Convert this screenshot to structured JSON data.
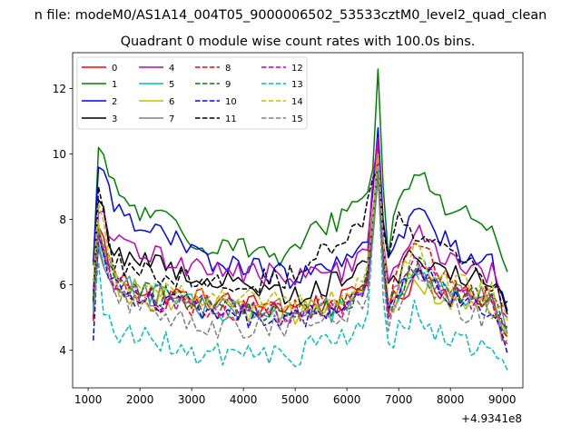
{
  "chart_data": {
    "type": "line",
    "suptitle": "n file: modeM0/AS1A14_004T05_9000006502_53533cztM0_level2_quad_clean",
    "title": "Quadrant 0 module wise count rates with 100.0s bins.",
    "xlabel": "",
    "ylabel": "",
    "x_offset_label": "+4.9341e8",
    "xlim": [
      700,
      9400
    ],
    "ylim": [
      2.85,
      13.1
    ],
    "xticks": [
      1000,
      2000,
      3000,
      4000,
      5000,
      6000,
      7000,
      8000,
      9000
    ],
    "xtick_labels": [
      "1000",
      "2000",
      "3000",
      "4000",
      "5000",
      "6000",
      "7000",
      "8000",
      "9000"
    ],
    "yticks": [
      4,
      6,
      8,
      10,
      12
    ],
    "ytick_labels": [
      "4",
      "6",
      "8",
      "10",
      "12"
    ],
    "x_start": 1100,
    "x_step": 100,
    "legend_position": "upper-left",
    "series": [
      {
        "name": "0",
        "color": "#ff0000",
        "dash": "solid",
        "anchors": [
          [
            1100,
            4.9
          ],
          [
            1200,
            7.8
          ],
          [
            1500,
            6.3
          ],
          [
            2000,
            5.9
          ],
          [
            3000,
            5.6
          ],
          [
            4000,
            5.4
          ],
          [
            5000,
            5.3
          ],
          [
            6000,
            5.5
          ],
          [
            6400,
            6.2
          ],
          [
            6600,
            10.2
          ],
          [
            6750,
            5.2
          ],
          [
            7400,
            6.4
          ],
          [
            8000,
            5.7
          ],
          [
            8800,
            5.6
          ],
          [
            9100,
            4.2
          ]
        ]
      },
      {
        "name": "1",
        "color": "#008000",
        "dash": "solid",
        "anchors": [
          [
            1100,
            6.6
          ],
          [
            1200,
            10.2
          ],
          [
            1500,
            8.9
          ],
          [
            2000,
            8.2
          ],
          [
            2500,
            8.0
          ],
          [
            3000,
            7.2
          ],
          [
            3500,
            7.3
          ],
          [
            4000,
            7.3
          ],
          [
            4500,
            6.8
          ],
          [
            5000,
            6.9
          ],
          [
            5300,
            7.6
          ],
          [
            5800,
            8.0
          ],
          [
            6300,
            8.7
          ],
          [
            6500,
            9.5
          ],
          [
            6600,
            12.6
          ],
          [
            6750,
            6.9
          ],
          [
            7000,
            8.5
          ],
          [
            7400,
            9.6
          ],
          [
            7800,
            8.7
          ],
          [
            8000,
            8.0
          ],
          [
            8500,
            8.1
          ],
          [
            8800,
            8.0
          ],
          [
            9100,
            6.4
          ]
        ]
      },
      {
        "name": "2",
        "color": "#0000ff",
        "dash": "solid",
        "anchors": [
          [
            1100,
            6.7
          ],
          [
            1200,
            9.6
          ],
          [
            1500,
            8.5
          ],
          [
            2000,
            7.9
          ],
          [
            3000,
            7.0
          ],
          [
            3500,
            6.6
          ],
          [
            4000,
            6.6
          ],
          [
            5000,
            6.2
          ],
          [
            6000,
            6.6
          ],
          [
            6400,
            7.6
          ],
          [
            6600,
            10.8
          ],
          [
            6750,
            6.5
          ],
          [
            7000,
            7.3
          ],
          [
            7300,
            8.3
          ],
          [
            8000,
            7.2
          ],
          [
            8800,
            6.7
          ],
          [
            9100,
            5.2
          ]
        ]
      },
      {
        "name": "3",
        "color": "#000000",
        "dash": "solid",
        "anchors": [
          [
            1100,
            5.5
          ],
          [
            1200,
            8.6
          ],
          [
            1500,
            7.0
          ],
          [
            2000,
            6.8
          ],
          [
            3000,
            6.3
          ],
          [
            4000,
            6.0
          ],
          [
            5000,
            5.7
          ],
          [
            6000,
            6.2
          ],
          [
            6400,
            7.0
          ],
          [
            6600,
            9.6
          ],
          [
            6750,
            6.0
          ],
          [
            7300,
            6.9
          ],
          [
            8000,
            6.4
          ],
          [
            8800,
            6.0
          ],
          [
            9100,
            5.1
          ]
        ]
      },
      {
        "name": "4",
        "color": "#bf00bf",
        "dash": "solid",
        "anchors": [
          [
            1100,
            5.8
          ],
          [
            1200,
            8.2
          ],
          [
            1500,
            7.3
          ],
          [
            2000,
            7.0
          ],
          [
            3000,
            6.6
          ],
          [
            4000,
            6.4
          ],
          [
            5000,
            6.2
          ],
          [
            6000,
            6.5
          ],
          [
            6400,
            7.4
          ],
          [
            6600,
            10.5
          ],
          [
            6750,
            6.2
          ],
          [
            7300,
            7.6
          ],
          [
            8000,
            6.7
          ],
          [
            8800,
            6.3
          ],
          [
            9100,
            5.0
          ]
        ]
      },
      {
        "name": "5",
        "color": "#00bfbf",
        "dash": "solid",
        "anchors": [
          [
            1100,
            5.3
          ],
          [
            1200,
            7.3
          ],
          [
            1500,
            6.2
          ],
          [
            2000,
            5.8
          ],
          [
            3000,
            5.4
          ],
          [
            4000,
            5.1
          ],
          [
            5000,
            5.0
          ],
          [
            6000,
            5.3
          ],
          [
            6400,
            6.0
          ],
          [
            6600,
            9.6
          ],
          [
            6750,
            5.0
          ],
          [
            7300,
            6.4
          ],
          [
            8000,
            5.6
          ],
          [
            8800,
            5.4
          ],
          [
            9100,
            4.4
          ]
        ]
      },
      {
        "name": "6",
        "color": "#bfbf00",
        "dash": "solid",
        "anchors": [
          [
            1100,
            5.6
          ],
          [
            1200,
            7.9
          ],
          [
            1500,
            6.0
          ],
          [
            2000,
            5.6
          ],
          [
            3000,
            5.5
          ],
          [
            4000,
            5.1
          ],
          [
            5000,
            5.1
          ],
          [
            6000,
            5.4
          ],
          [
            6400,
            6.1
          ],
          [
            6600,
            9.9
          ],
          [
            6750,
            5.1
          ],
          [
            7300,
            6.3
          ],
          [
            8000,
            5.4
          ],
          [
            8800,
            5.3
          ],
          [
            9100,
            4.4
          ]
        ]
      },
      {
        "name": "7",
        "color": "#808080",
        "dash": "solid",
        "anchors": [
          [
            1100,
            5.3
          ],
          [
            1200,
            7.1
          ],
          [
            1500,
            6.1
          ],
          [
            2000,
            5.8
          ],
          [
            3000,
            5.4
          ],
          [
            4000,
            5.3
          ],
          [
            5000,
            5.2
          ],
          [
            6000,
            5.4
          ],
          [
            6400,
            6.0
          ],
          [
            6600,
            9.3
          ],
          [
            6750,
            5.2
          ],
          [
            7300,
            6.5
          ],
          [
            8000,
            5.8
          ],
          [
            8800,
            5.5
          ],
          [
            9100,
            4.5
          ]
        ]
      },
      {
        "name": "8",
        "color": "#ff0000",
        "dash": "dashed",
        "anchors": [
          [
            1100,
            5.0
          ],
          [
            1200,
            7.6
          ],
          [
            1500,
            6.0
          ],
          [
            2000,
            5.6
          ],
          [
            3000,
            5.4
          ],
          [
            4000,
            5.2
          ],
          [
            5000,
            5.2
          ],
          [
            6000,
            5.5
          ],
          [
            6400,
            6.1
          ],
          [
            6600,
            9.8
          ],
          [
            6750,
            5.2
          ],
          [
            7300,
            7.5
          ],
          [
            8000,
            5.9
          ],
          [
            8800,
            5.6
          ],
          [
            9100,
            4.4
          ]
        ]
      },
      {
        "name": "9",
        "color": "#008000",
        "dash": "dashed",
        "anchors": [
          [
            1100,
            5.4
          ],
          [
            1200,
            7.7
          ],
          [
            1500,
            6.2
          ],
          [
            2000,
            5.8
          ],
          [
            3000,
            5.5
          ],
          [
            4000,
            5.2
          ],
          [
            5000,
            5.1
          ],
          [
            6000,
            5.4
          ],
          [
            6400,
            6.2
          ],
          [
            6600,
            9.8
          ],
          [
            6750,
            5.2
          ],
          [
            7300,
            6.6
          ],
          [
            8000,
            5.8
          ],
          [
            8800,
            5.4
          ],
          [
            9100,
            4.6
          ]
        ]
      },
      {
        "name": "10",
        "color": "#0000ff",
        "dash": "dashed",
        "anchors": [
          [
            1100,
            4.3
          ],
          [
            1200,
            7.5
          ],
          [
            1500,
            6.0
          ],
          [
            2000,
            5.6
          ],
          [
            3000,
            5.3
          ],
          [
            4000,
            5.1
          ],
          [
            4500,
            4.6
          ],
          [
            5000,
            5.0
          ],
          [
            6000,
            5.2
          ],
          [
            6400,
            6.0
          ],
          [
            6600,
            9.4
          ],
          [
            6750,
            5.1
          ],
          [
            7300,
            6.6
          ],
          [
            8000,
            5.6
          ],
          [
            8800,
            5.1
          ],
          [
            9100,
            3.9
          ]
        ]
      },
      {
        "name": "11",
        "color": "#000000",
        "dash": "dashed",
        "anchors": [
          [
            1100,
            5.5
          ],
          [
            1200,
            9.0
          ],
          [
            1500,
            6.8
          ],
          [
            2000,
            6.4
          ],
          [
            3000,
            6.2
          ],
          [
            4000,
            6.0
          ],
          [
            5000,
            6.3
          ],
          [
            5500,
            6.9
          ],
          [
            6000,
            7.5
          ],
          [
            6300,
            7.9
          ],
          [
            6600,
            9.5
          ],
          [
            6750,
            6.7
          ],
          [
            7000,
            8.2
          ],
          [
            7300,
            7.7
          ],
          [
            8000,
            6.8
          ],
          [
            8800,
            6.1
          ],
          [
            9100,
            5.5
          ]
        ]
      },
      {
        "name": "12",
        "color": "#bf00bf",
        "dash": "dashed",
        "anchors": [
          [
            1100,
            5.2
          ],
          [
            1200,
            7.5
          ],
          [
            1500,
            6.0
          ],
          [
            2000,
            5.6
          ],
          [
            3000,
            5.4
          ],
          [
            4000,
            5.2
          ],
          [
            5000,
            5.1
          ],
          [
            6000,
            5.3
          ],
          [
            6400,
            6.0
          ],
          [
            6600,
            9.7
          ],
          [
            6750,
            5.2
          ],
          [
            7300,
            6.5
          ],
          [
            8000,
            5.7
          ],
          [
            8800,
            5.5
          ],
          [
            9100,
            4.7
          ]
        ]
      },
      {
        "name": "13",
        "color": "#00bfbf",
        "dash": "dashed",
        "anchors": [
          [
            1100,
            5.2
          ],
          [
            1200,
            6.7
          ],
          [
            1300,
            5.0
          ],
          [
            1500,
            4.6
          ],
          [
            2000,
            4.4
          ],
          [
            2500,
            4.2
          ],
          [
            3000,
            3.8
          ],
          [
            3500,
            3.9
          ],
          [
            4000,
            4.0
          ],
          [
            4500,
            3.8
          ],
          [
            5000,
            3.8
          ],
          [
            5500,
            4.3
          ],
          [
            6000,
            4.4
          ],
          [
            6400,
            5.0
          ],
          [
            6600,
            9.6
          ],
          [
            6750,
            3.9
          ],
          [
            7000,
            4.6
          ],
          [
            7300,
            5.2
          ],
          [
            7800,
            4.5
          ],
          [
            8000,
            4.3
          ],
          [
            8500,
            4.1
          ],
          [
            8800,
            4.2
          ],
          [
            9100,
            3.4
          ]
        ]
      },
      {
        "name": "14",
        "color": "#bfbf00",
        "dash": "dashed",
        "anchors": [
          [
            1100,
            6.1
          ],
          [
            1200,
            8.5
          ],
          [
            1500,
            6.4
          ],
          [
            2000,
            6.0
          ],
          [
            3000,
            5.7
          ],
          [
            4000,
            5.5
          ],
          [
            5000,
            5.4
          ],
          [
            6000,
            5.6
          ],
          [
            6400,
            6.5
          ],
          [
            6600,
            10.0
          ],
          [
            6750,
            5.5
          ],
          [
            7300,
            7.0
          ],
          [
            8000,
            6.0
          ],
          [
            8800,
            5.8
          ],
          [
            9100,
            4.9
          ]
        ]
      },
      {
        "name": "15",
        "color": "#808080",
        "dash": "dashed",
        "anchors": [
          [
            1100,
            5.1
          ],
          [
            1200,
            7.7
          ],
          [
            1500,
            5.6
          ],
          [
            2000,
            5.3
          ],
          [
            3000,
            4.9
          ],
          [
            3500,
            4.7
          ],
          [
            4000,
            4.6
          ],
          [
            5000,
            4.8
          ],
          [
            6000,
            5.1
          ],
          [
            6400,
            5.6
          ],
          [
            6600,
            9.3
          ],
          [
            6750,
            4.7
          ],
          [
            7300,
            6.2
          ],
          [
            8000,
            5.3
          ],
          [
            8800,
            5.0
          ],
          [
            9100,
            4.3
          ]
        ]
      }
    ]
  }
}
